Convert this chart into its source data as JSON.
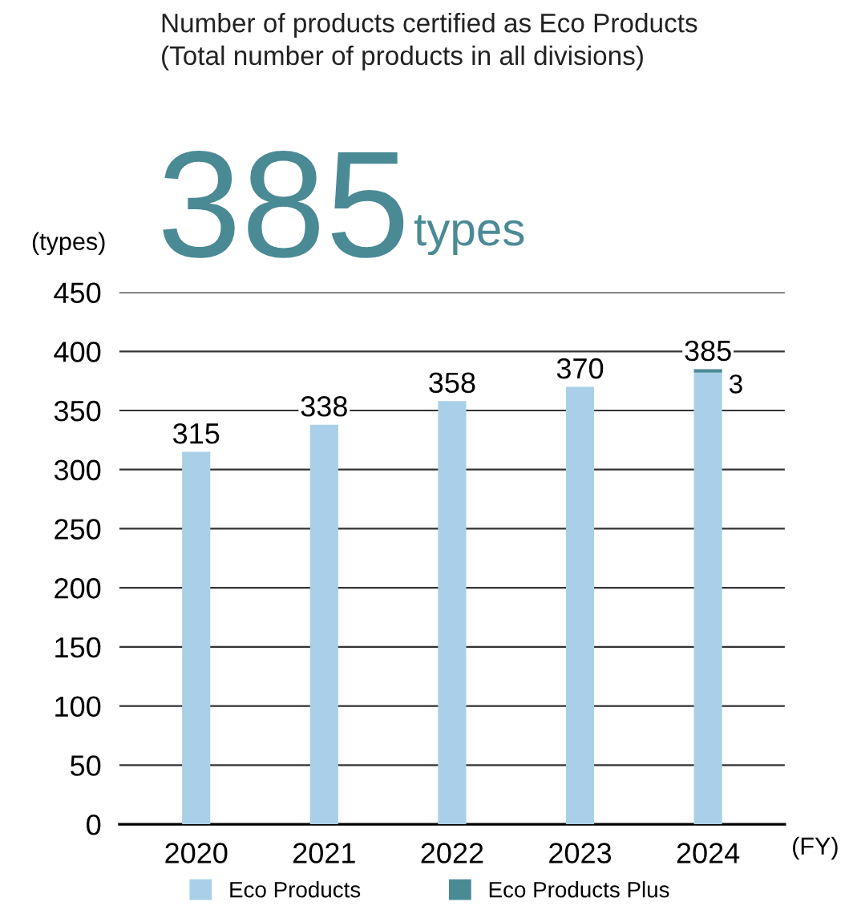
{
  "chart_data": {
    "type": "bar",
    "stacked": true,
    "title": "Number of products certified as Eco Products\n(Total number of products in all divisions)",
    "annotations": [
      "385",
      "types"
    ],
    "ylabel": "(types)",
    "xlabel": "(FY)",
    "categories": [
      "2020",
      "2021",
      "2022",
      "2023",
      "2024"
    ],
    "series": [
      {
        "name": "Eco Products",
        "color": "#a9d0e8",
        "values": [
          315,
          338,
          358,
          370,
          382
        ]
      },
      {
        "name": "Eco Products Plus",
        "color": "#4a8a95",
        "values": [
          0,
          0,
          0,
          0,
          3
        ],
        "value_labels": [
          null,
          null,
          null,
          null,
          "3"
        ]
      }
    ],
    "totals": [
      "315",
      "338",
      "358",
      "370",
      "385"
    ],
    "ylim": [
      0,
      450
    ],
    "yticks": [
      0,
      50,
      100,
      150,
      200,
      250,
      300,
      350,
      400,
      450
    ],
    "grid": "y",
    "legend": "bottom"
  }
}
